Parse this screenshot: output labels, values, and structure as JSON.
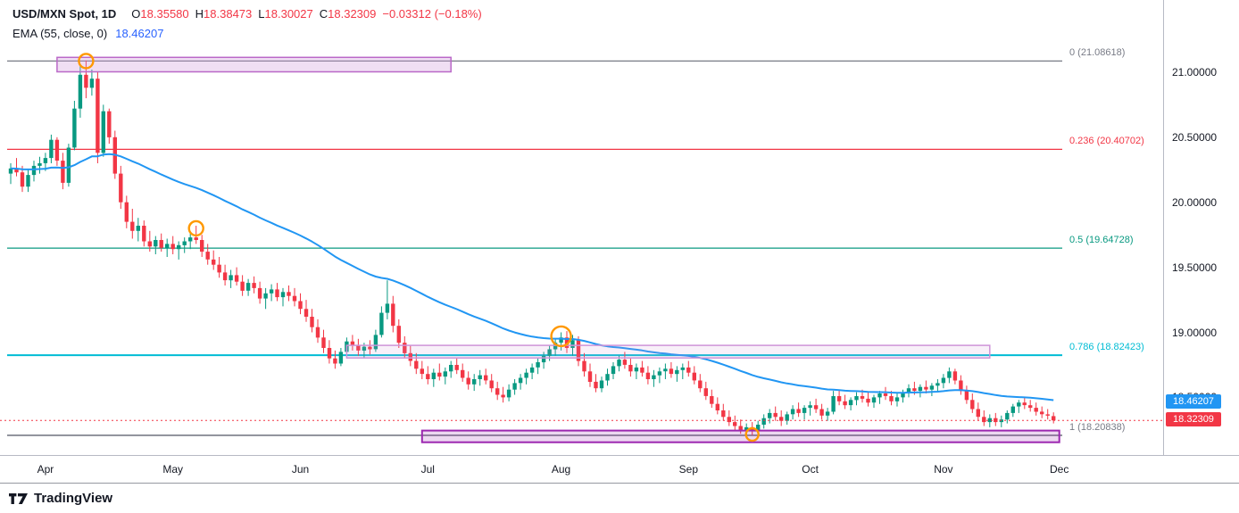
{
  "header": {
    "symbol": "USD/MXN Spot, 1D",
    "o_label": "O",
    "o": "18.35580",
    "h_label": "H",
    "h": "18.38473",
    "l_label": "L",
    "l": "18.30027",
    "c_label": "C",
    "c": "18.32309",
    "change": "−0.03312 (−0.18%)",
    "indicator_label": "EMA (55, close, 0)",
    "indicator_value": "18.46207"
  },
  "axis": {
    "price_ticks": [
      "21.00000",
      "20.50000",
      "20.00000",
      "19.50000",
      "19.00000",
      "18.50000"
    ],
    "ema_badge": {
      "value": "18.46207",
      "price": 18.46207,
      "color": "#2196f3"
    },
    "price_badge": {
      "value": "18.32309",
      "price": 18.32309,
      "color": "#f23645"
    }
  },
  "timeline": {
    "months": [
      {
        "label": "Apr",
        "i": 6
      },
      {
        "label": "May",
        "i": 28
      },
      {
        "label": "Jun",
        "i": 50
      },
      {
        "label": "Jul",
        "i": 72
      },
      {
        "label": "Aug",
        "i": 95
      },
      {
        "label": "Sep",
        "i": 117
      },
      {
        "label": "Oct",
        "i": 138
      },
      {
        "label": "Nov",
        "i": 161
      },
      {
        "label": "Dec",
        "i": 181
      }
    ]
  },
  "fib_levels": [
    {
      "label": "0 (21.08618)",
      "price": 21.08618,
      "color": "#787b86",
      "width": 1.2
    },
    {
      "label": "0.236 (20.40702)",
      "price": 20.40702,
      "color": "#f23645",
      "width": 1.2
    },
    {
      "label": "0.5 (19.64728)",
      "price": 19.64728,
      "color": "#089981",
      "width": 1.2
    },
    {
      "label": "0.786 (18.82423)",
      "price": 18.82423,
      "color": "#00bcd4",
      "width": 2
    },
    {
      "label": "1 (18.20838)",
      "price": 18.20838,
      "color": "#787b86",
      "width": 1.6
    }
  ],
  "annotations": {
    "circle_color": "#ff9800",
    "boxes": [
      {
        "i1": 8,
        "i2": 76,
        "p1": 21.003,
        "p2": 21.114,
        "stroke": "#ba68c8",
        "fill": "rgba(206,147,216,0.30)",
        "sw": 1.5
      },
      {
        "i1": 58,
        "i2": 169,
        "p1": 18.803,
        "p2": 18.9,
        "stroke": "#ce93d8",
        "fill": "rgba(206,147,216,0.14)",
        "sw": 1.5
      },
      {
        "i1": 71,
        "i2": 181,
        "p1": 18.155,
        "p2": 18.245,
        "stroke": "#9c27b0",
        "fill": "rgba(156,39,176,0.18)",
        "sw": 2
      }
    ],
    "circles": [
      {
        "i": 13,
        "price": 21.086,
        "r": 8
      },
      {
        "i": 32,
        "price": 19.8,
        "r": 8
      },
      {
        "i": 95,
        "price": 18.97,
        "r": 11
      },
      {
        "i": 128,
        "price": 18.215,
        "r": 7
      }
    ]
  },
  "chart_data": {
    "type": "candlestick",
    "symbol": "USD/MXN Spot",
    "timeframe": "1D",
    "ylim": [
      18.057,
      21.555
    ],
    "x_months": [
      "Apr",
      "May",
      "Jun",
      "Jul",
      "Aug",
      "Sep",
      "Oct",
      "Nov",
      "Dec"
    ],
    "up_color": "#089981",
    "down_color": "#f23645",
    "last_price": 18.32309,
    "ema": {
      "period": 55,
      "source": "close",
      "value": 18.46207,
      "color": "#2196f3"
    },
    "fib_retracement": {
      "high": 21.08618,
      "low": 18.20838,
      "levels": [
        0,
        0.236,
        0.5,
        0.786,
        1
      ],
      "prices": [
        21.08618,
        20.40702,
        19.64728,
        18.82423,
        18.20838
      ]
    },
    "candles": [
      [
        20.22,
        20.3,
        20.14,
        20.26
      ],
      [
        20.26,
        20.34,
        20.2,
        20.23
      ],
      [
        20.23,
        20.28,
        20.08,
        20.12
      ],
      [
        20.12,
        20.25,
        20.08,
        20.21
      ],
      [
        20.21,
        20.32,
        20.16,
        20.28
      ],
      [
        20.28,
        20.35,
        20.22,
        20.3
      ],
      [
        20.3,
        20.38,
        20.24,
        20.34
      ],
      [
        20.34,
        20.52,
        20.3,
        20.48
      ],
      [
        20.48,
        20.5,
        20.28,
        20.32
      ],
      [
        20.32,
        20.38,
        20.1,
        20.15
      ],
      [
        20.15,
        20.45,
        20.12,
        20.42
      ],
      [
        20.42,
        20.78,
        20.4,
        20.72
      ],
      [
        20.72,
        21.05,
        20.65,
        20.98
      ],
      [
        20.98,
        21.09,
        20.8,
        20.88
      ],
      [
        20.88,
        21.02,
        20.82,
        20.95
      ],
      [
        20.95,
        21.0,
        20.3,
        20.38
      ],
      [
        20.38,
        20.75,
        20.35,
        20.7
      ],
      [
        20.7,
        20.72,
        20.45,
        20.5
      ],
      [
        20.5,
        20.55,
        20.18,
        20.22
      ],
      [
        20.22,
        20.28,
        19.95,
        20.0
      ],
      [
        20.0,
        20.05,
        19.8,
        19.85
      ],
      [
        19.85,
        19.95,
        19.72,
        19.78
      ],
      [
        19.78,
        19.88,
        19.7,
        19.82
      ],
      [
        19.82,
        19.86,
        19.66,
        19.7
      ],
      [
        19.7,
        19.78,
        19.62,
        19.66
      ],
      [
        19.66,
        19.74,
        19.6,
        19.71
      ],
      [
        19.71,
        19.76,
        19.62,
        19.65
      ],
      [
        19.65,
        19.72,
        19.58,
        19.68
      ],
      [
        19.68,
        19.74,
        19.6,
        19.64
      ],
      [
        19.64,
        19.7,
        19.56,
        19.67
      ],
      [
        19.67,
        19.73,
        19.61,
        19.7
      ],
      [
        19.7,
        19.76,
        19.64,
        19.73
      ],
      [
        19.73,
        19.82,
        19.68,
        19.71
      ],
      [
        19.71,
        19.75,
        19.58,
        19.62
      ],
      [
        19.62,
        19.68,
        19.52,
        19.56
      ],
      [
        19.56,
        19.63,
        19.48,
        19.52
      ],
      [
        19.52,
        19.58,
        19.42,
        19.46
      ],
      [
        19.46,
        19.52,
        19.36,
        19.4
      ],
      [
        19.4,
        19.48,
        19.34,
        19.44
      ],
      [
        19.44,
        19.5,
        19.36,
        19.39
      ],
      [
        19.39,
        19.44,
        19.28,
        19.32
      ],
      [
        19.32,
        19.41,
        19.28,
        19.38
      ],
      [
        19.38,
        19.43,
        19.3,
        19.34
      ],
      [
        19.34,
        19.39,
        19.22,
        19.26
      ],
      [
        19.26,
        19.34,
        19.18,
        19.3
      ],
      [
        19.3,
        19.37,
        19.24,
        19.33
      ],
      [
        19.33,
        19.38,
        19.24,
        19.27
      ],
      [
        19.27,
        19.34,
        19.2,
        19.31
      ],
      [
        19.31,
        19.36,
        19.24,
        19.28
      ],
      [
        19.28,
        19.34,
        19.2,
        19.24
      ],
      [
        19.24,
        19.3,
        19.14,
        19.18
      ],
      [
        19.18,
        19.25,
        19.08,
        19.12
      ],
      [
        19.12,
        19.18,
        19.0,
        19.04
      ],
      [
        19.04,
        19.1,
        18.92,
        18.96
      ],
      [
        18.96,
        19.02,
        18.84,
        18.88
      ],
      [
        18.88,
        18.94,
        18.76,
        18.8
      ],
      [
        18.8,
        18.86,
        18.72,
        18.76
      ],
      [
        18.76,
        18.88,
        18.74,
        18.85
      ],
      [
        18.85,
        18.96,
        18.82,
        18.93
      ],
      [
        18.93,
        18.98,
        18.86,
        18.9
      ],
      [
        18.9,
        18.95,
        18.82,
        18.86
      ],
      [
        18.86,
        18.92,
        18.8,
        18.89
      ],
      [
        18.89,
        18.94,
        18.83,
        18.87
      ],
      [
        18.87,
        19.02,
        18.85,
        18.98
      ],
      [
        18.98,
        19.2,
        18.96,
        19.15
      ],
      [
        19.15,
        19.4,
        19.1,
        19.22
      ],
      [
        19.22,
        19.28,
        19.0,
        19.05
      ],
      [
        19.05,
        19.1,
        18.88,
        18.92
      ],
      [
        18.92,
        18.97,
        18.8,
        18.84
      ],
      [
        18.84,
        18.9,
        18.74,
        18.78
      ],
      [
        18.78,
        18.84,
        18.68,
        18.72
      ],
      [
        18.72,
        18.78,
        18.64,
        18.68
      ],
      [
        18.68,
        18.74,
        18.6,
        18.64
      ],
      [
        18.64,
        18.72,
        18.58,
        18.69
      ],
      [
        18.69,
        18.76,
        18.63,
        18.66
      ],
      [
        18.66,
        18.73,
        18.6,
        18.7
      ],
      [
        18.7,
        18.78,
        18.65,
        18.75
      ],
      [
        18.75,
        18.8,
        18.68,
        18.71
      ],
      [
        18.71,
        18.76,
        18.62,
        18.65
      ],
      [
        18.65,
        18.7,
        18.56,
        18.6
      ],
      [
        18.6,
        18.68,
        18.55,
        18.64
      ],
      [
        18.64,
        18.71,
        18.59,
        18.67
      ],
      [
        18.67,
        18.72,
        18.6,
        18.63
      ],
      [
        18.63,
        18.68,
        18.54,
        18.57
      ],
      [
        18.57,
        18.62,
        18.48,
        18.52
      ],
      [
        18.52,
        18.58,
        18.46,
        18.5
      ],
      [
        18.5,
        18.6,
        18.47,
        18.56
      ],
      [
        18.56,
        18.64,
        18.52,
        18.61
      ],
      [
        18.61,
        18.68,
        18.56,
        18.65
      ],
      [
        18.65,
        18.72,
        18.6,
        18.69
      ],
      [
        18.69,
        18.76,
        18.64,
        18.73
      ],
      [
        18.73,
        18.8,
        18.68,
        18.77
      ],
      [
        18.77,
        18.85,
        18.72,
        18.82
      ],
      [
        18.82,
        18.9,
        18.78,
        18.87
      ],
      [
        18.87,
        18.95,
        18.82,
        18.92
      ],
      [
        18.92,
        19.0,
        18.86,
        18.96
      ],
      [
        18.96,
        19.01,
        18.84,
        18.88
      ],
      [
        18.88,
        18.98,
        18.82,
        18.94
      ],
      [
        18.94,
        18.97,
        18.74,
        18.78
      ],
      [
        18.78,
        18.84,
        18.66,
        18.7
      ],
      [
        18.7,
        18.76,
        18.58,
        18.62
      ],
      [
        18.62,
        18.68,
        18.54,
        18.57
      ],
      [
        18.57,
        18.66,
        18.54,
        18.63
      ],
      [
        18.63,
        18.72,
        18.59,
        18.68
      ],
      [
        18.68,
        18.77,
        18.64,
        18.74
      ],
      [
        18.74,
        18.82,
        18.7,
        18.79
      ],
      [
        18.79,
        18.85,
        18.72,
        18.75
      ],
      [
        18.75,
        18.8,
        18.66,
        18.7
      ],
      [
        18.7,
        18.76,
        18.64,
        18.73
      ],
      [
        18.73,
        18.78,
        18.66,
        18.69
      ],
      [
        18.69,
        18.74,
        18.6,
        18.64
      ],
      [
        18.64,
        18.71,
        18.58,
        18.67
      ],
      [
        18.67,
        18.73,
        18.61,
        18.7
      ],
      [
        18.7,
        18.76,
        18.64,
        18.72
      ],
      [
        18.72,
        18.77,
        18.65,
        18.68
      ],
      [
        18.68,
        18.74,
        18.62,
        18.71
      ],
      [
        18.71,
        18.76,
        18.64,
        18.73
      ],
      [
        18.73,
        18.78,
        18.66,
        18.69
      ],
      [
        18.69,
        18.74,
        18.6,
        18.63
      ],
      [
        18.63,
        18.68,
        18.54,
        18.57
      ],
      [
        18.57,
        18.62,
        18.48,
        18.51
      ],
      [
        18.51,
        18.56,
        18.42,
        18.45
      ],
      [
        18.45,
        18.5,
        18.37,
        18.4
      ],
      [
        18.4,
        18.45,
        18.32,
        18.35
      ],
      [
        18.35,
        18.4,
        18.28,
        18.31
      ],
      [
        18.31,
        18.36,
        18.25,
        18.28
      ],
      [
        18.28,
        18.33,
        18.22,
        18.25
      ],
      [
        18.25,
        18.3,
        18.21,
        18.27
      ],
      [
        18.27,
        18.31,
        18.21,
        18.24
      ],
      [
        18.24,
        18.32,
        18.22,
        18.29
      ],
      [
        18.29,
        18.37,
        18.26,
        18.34
      ],
      [
        18.34,
        18.41,
        18.3,
        18.38
      ],
      [
        18.38,
        18.43,
        18.32,
        18.35
      ],
      [
        18.35,
        18.4,
        18.28,
        18.32
      ],
      [
        18.32,
        18.39,
        18.29,
        18.37
      ],
      [
        18.37,
        18.44,
        18.33,
        18.41
      ],
      [
        18.41,
        18.46,
        18.35,
        18.38
      ],
      [
        18.38,
        18.44,
        18.33,
        18.42
      ],
      [
        18.42,
        18.47,
        18.36,
        18.44
      ],
      [
        18.44,
        18.49,
        18.38,
        18.41
      ],
      [
        18.41,
        18.45,
        18.33,
        18.36
      ],
      [
        18.36,
        18.42,
        18.32,
        18.39
      ],
      [
        18.39,
        18.55,
        18.37,
        18.51
      ],
      [
        18.51,
        18.56,
        18.44,
        18.47
      ],
      [
        18.47,
        18.52,
        18.41,
        18.44
      ],
      [
        18.44,
        18.5,
        18.4,
        18.48
      ],
      [
        18.48,
        18.54,
        18.44,
        18.51
      ],
      [
        18.51,
        18.56,
        18.46,
        18.49
      ],
      [
        18.49,
        18.54,
        18.43,
        18.46
      ],
      [
        18.46,
        18.52,
        18.42,
        18.5
      ],
      [
        18.5,
        18.55,
        18.45,
        18.53
      ],
      [
        18.53,
        18.58,
        18.48,
        18.51
      ],
      [
        18.51,
        18.55,
        18.44,
        18.47
      ],
      [
        18.47,
        18.53,
        18.43,
        18.5
      ],
      [
        18.5,
        18.56,
        18.46,
        18.54
      ],
      [
        18.54,
        18.6,
        18.5,
        18.57
      ],
      [
        18.57,
        18.62,
        18.52,
        18.55
      ],
      [
        18.55,
        18.6,
        18.5,
        18.58
      ],
      [
        18.58,
        18.63,
        18.53,
        18.56
      ],
      [
        18.56,
        18.61,
        18.51,
        18.59
      ],
      [
        18.59,
        18.64,
        18.54,
        18.61
      ],
      [
        18.61,
        18.68,
        18.57,
        18.65
      ],
      [
        18.65,
        18.73,
        18.61,
        18.7
      ],
      [
        18.7,
        18.72,
        18.6,
        18.63
      ],
      [
        18.63,
        18.67,
        18.52,
        18.55
      ],
      [
        18.55,
        18.59,
        18.45,
        18.48
      ],
      [
        18.48,
        18.53,
        18.38,
        18.41
      ],
      [
        18.41,
        18.46,
        18.32,
        18.35
      ],
      [
        18.35,
        18.4,
        18.28,
        18.31
      ],
      [
        18.31,
        18.37,
        18.27,
        18.34
      ],
      [
        18.34,
        18.38,
        18.28,
        18.31
      ],
      [
        18.31,
        18.36,
        18.27,
        18.33
      ],
      [
        18.33,
        18.4,
        18.3,
        18.38
      ],
      [
        18.38,
        18.45,
        18.35,
        18.43
      ],
      [
        18.43,
        18.48,
        18.38,
        18.46
      ],
      [
        18.46,
        18.5,
        18.41,
        18.44
      ],
      [
        18.44,
        18.48,
        18.39,
        18.42
      ],
      [
        18.42,
        18.46,
        18.36,
        18.39
      ],
      [
        18.39,
        18.43,
        18.34,
        18.37
      ],
      [
        18.37,
        18.41,
        18.33,
        18.36
      ],
      [
        18.356,
        18.385,
        18.3,
        18.323
      ]
    ]
  },
  "footer": {
    "brand": "TradingView"
  }
}
